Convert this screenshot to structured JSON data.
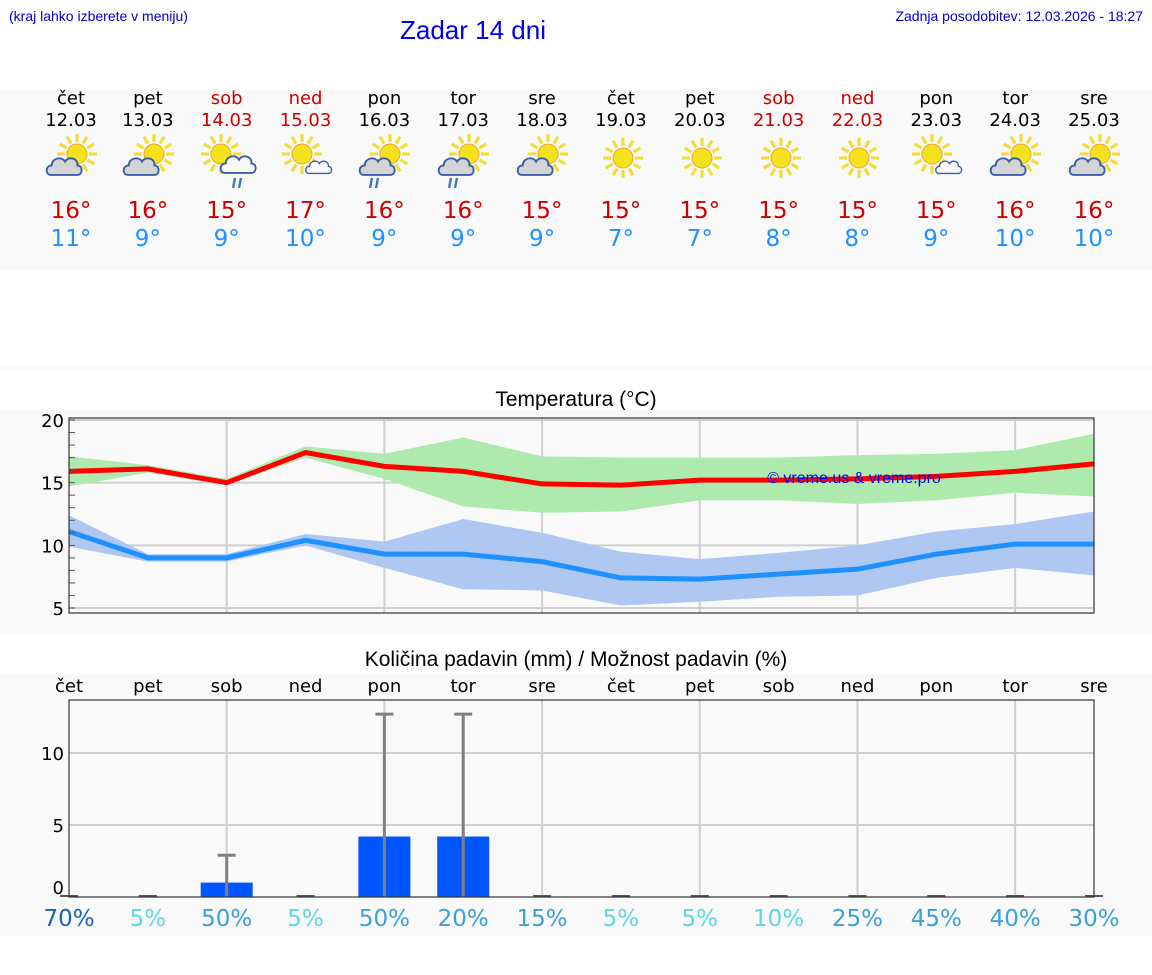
{
  "header": {
    "hint": "(kraj lahko izberete v meniju)",
    "title": "Zadar 14 dni",
    "updated": "Zadnja posodobitev: 12.03.2026 - 18:27"
  },
  "days": [
    {
      "name": "čet",
      "date": "12.03",
      "weekend": false,
      "icon": "partly-cloudy-icon",
      "max": "16°",
      "min": "11°"
    },
    {
      "name": "pet",
      "date": "13.03",
      "weekend": false,
      "icon": "partly-cloudy-icon",
      "max": "16°",
      "min": "9°"
    },
    {
      "name": "sob",
      "date": "14.03",
      "weekend": true,
      "icon": "sun-cloud-rain-icon",
      "max": "15°",
      "min": "9°"
    },
    {
      "name": "ned",
      "date": "15.03",
      "weekend": true,
      "icon": "sun-small-cloud-icon",
      "max": "17°",
      "min": "10°"
    },
    {
      "name": "pon",
      "date": "16.03",
      "weekend": false,
      "icon": "partly-cloudy-rain-icon",
      "max": "16°",
      "min": "9°"
    },
    {
      "name": "tor",
      "date": "17.03",
      "weekend": false,
      "icon": "partly-cloudy-rain-icon",
      "max": "16°",
      "min": "9°"
    },
    {
      "name": "sre",
      "date": "18.03",
      "weekend": false,
      "icon": "partly-cloudy-icon",
      "max": "15°",
      "min": "9°"
    },
    {
      "name": "čet",
      "date": "19.03",
      "weekend": false,
      "icon": "sun-icon",
      "max": "15°",
      "min": "7°"
    },
    {
      "name": "pet",
      "date": "20.03",
      "weekend": false,
      "icon": "sun-icon",
      "max": "15°",
      "min": "7°"
    },
    {
      "name": "sob",
      "date": "21.03",
      "weekend": true,
      "icon": "sun-icon",
      "max": "15°",
      "min": "8°"
    },
    {
      "name": "ned",
      "date": "22.03",
      "weekend": true,
      "icon": "sun-icon",
      "max": "15°",
      "min": "8°"
    },
    {
      "name": "pon",
      "date": "23.03",
      "weekend": false,
      "icon": "sun-small-cloud-icon",
      "max": "15°",
      "min": "9°"
    },
    {
      "name": "tor",
      "date": "24.03",
      "weekend": false,
      "icon": "partly-cloudy-icon",
      "max": "16°",
      "min": "10°"
    },
    {
      "name": "sre",
      "date": "25.03",
      "weekend": false,
      "icon": "partly-cloudy-icon",
      "max": "16°",
      "min": "10°"
    }
  ],
  "colors": {
    "max_line": "#ff0000",
    "max_band": "#aeeaae",
    "min_line": "#1e90ff",
    "min_band": "#aec8f2",
    "bar": "#0055ff",
    "errorbar": "#808080",
    "weekend": "#cc0000",
    "title_blue": "#0000ee"
  },
  "chart_data": [
    {
      "type": "line",
      "title": "Temperatura (°C)",
      "xlabel": "",
      "ylabel": "",
      "ylim": [
        4.5,
        20
      ],
      "yticks": [
        5,
        10,
        15,
        20
      ],
      "grid": true,
      "watermark": "© vreme.us & vreme.pro",
      "categories": [
        "12.03",
        "13.03",
        "14.03",
        "15.03",
        "16.03",
        "17.03",
        "18.03",
        "19.03",
        "20.03",
        "21.03",
        "22.03",
        "23.03",
        "24.03",
        "25.03"
      ],
      "series": [
        {
          "name": "max",
          "values": [
            15.9,
            16.1,
            15.0,
            17.4,
            16.3,
            15.9,
            14.9,
            14.8,
            15.2,
            15.2,
            15.3,
            15.5,
            15.9,
            16.5
          ],
          "band_low": [
            14.7,
            15.8,
            14.8,
            17.0,
            15.3,
            13.1,
            12.6,
            12.7,
            13.6,
            13.6,
            13.3,
            13.6,
            14.2,
            13.9
          ],
          "band_high": [
            17.1,
            16.4,
            15.3,
            17.9,
            17.3,
            18.6,
            17.1,
            17.0,
            17.0,
            17.0,
            17.2,
            17.3,
            17.6,
            18.9
          ]
        },
        {
          "name": "min",
          "values": [
            11.1,
            9.0,
            9.0,
            10.4,
            9.3,
            9.3,
            8.7,
            7.4,
            7.3,
            7.7,
            8.1,
            9.3,
            10.1,
            10.1
          ],
          "band_low": [
            9.9,
            8.7,
            8.7,
            10.0,
            8.2,
            6.5,
            6.4,
            5.2,
            5.5,
            5.9,
            6.0,
            7.4,
            8.2,
            7.6
          ],
          "band_high": [
            12.4,
            9.3,
            9.3,
            10.9,
            10.3,
            12.1,
            11.0,
            9.5,
            8.9,
            9.4,
            10.0,
            11.1,
            11.7,
            12.7
          ]
        }
      ]
    },
    {
      "type": "bar",
      "title": "Količina padavin (mm) / Možnost padavin (%)",
      "xlabel": "",
      "ylabel": "",
      "ylim": [
        0,
        13.7
      ],
      "yticks": [
        0,
        5,
        10
      ],
      "grid": true,
      "categories": [
        "čet",
        "pet",
        "sob",
        "ned",
        "pon",
        "tor",
        "sre",
        "čet",
        "pet",
        "sob",
        "ned",
        "pon",
        "tor",
        "sre"
      ],
      "values": [
        0,
        0,
        1.0,
        0,
        4.2,
        4.2,
        0,
        0,
        0,
        0,
        0,
        0,
        0,
        0
      ],
      "error_high": [
        0,
        0,
        2.9,
        0,
        12.7,
        12.7,
        0,
        0,
        0,
        0,
        0,
        0,
        0,
        0
      ],
      "probability": [
        "70%",
        "5%",
        "50%",
        "5%",
        "50%",
        "20%",
        "15%",
        "5%",
        "5%",
        "10%",
        "25%",
        "45%",
        "40%",
        "30%"
      ],
      "probability_colors": [
        "#1a64b4",
        "#5cd6e8",
        "#3aa0d8",
        "#5cd6e8",
        "#3aa0d8",
        "#3aa0d8",
        "#3aa0d8",
        "#5cd6e8",
        "#5cd6e8",
        "#5cd6e8",
        "#3aa0d8",
        "#3aa0d8",
        "#3aa0d8",
        "#3aa0d8"
      ]
    }
  ]
}
